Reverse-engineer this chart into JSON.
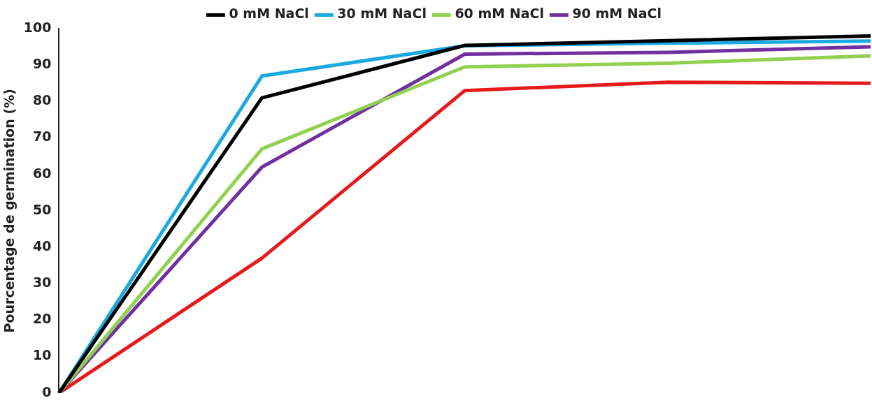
{
  "chart_data": {
    "type": "line",
    "ylabel": "Pourcentage de germination (%)",
    "categories": [
      null,
      null,
      null,
      null,
      null
    ],
    "series": [
      {
        "name": "0 mM NaCl",
        "color": "#000000",
        "values": [
          0,
          81,
          95.4,
          96.7,
          98
        ]
      },
      {
        "name": "30 mM NaCl",
        "color": "#1ba9e1",
        "values": [
          0,
          87,
          95.3,
          96,
          96.6
        ]
      },
      {
        "name": "60 mM NaCl",
        "color": "#92d050",
        "values": [
          0,
          67,
          89.5,
          90.5,
          92.5
        ]
      },
      {
        "name": "90 mM NaCl",
        "color": "#7030a0",
        "values": [
          0,
          62,
          93,
          93.5,
          95
        ]
      },
      {
        "color": "#e41a1c",
        "values": [
          0,
          37,
          83,
          85.3,
          85
        ]
      }
    ],
    "ylim": [
      0,
      100
    ],
    "yticks": [
      0,
      10,
      20,
      30,
      40,
      50,
      60,
      70,
      80,
      90,
      100
    ],
    "grid": false,
    "legend": "top",
    "tick_labels": "y",
    "marker": "none",
    "line_style": "solid"
  }
}
